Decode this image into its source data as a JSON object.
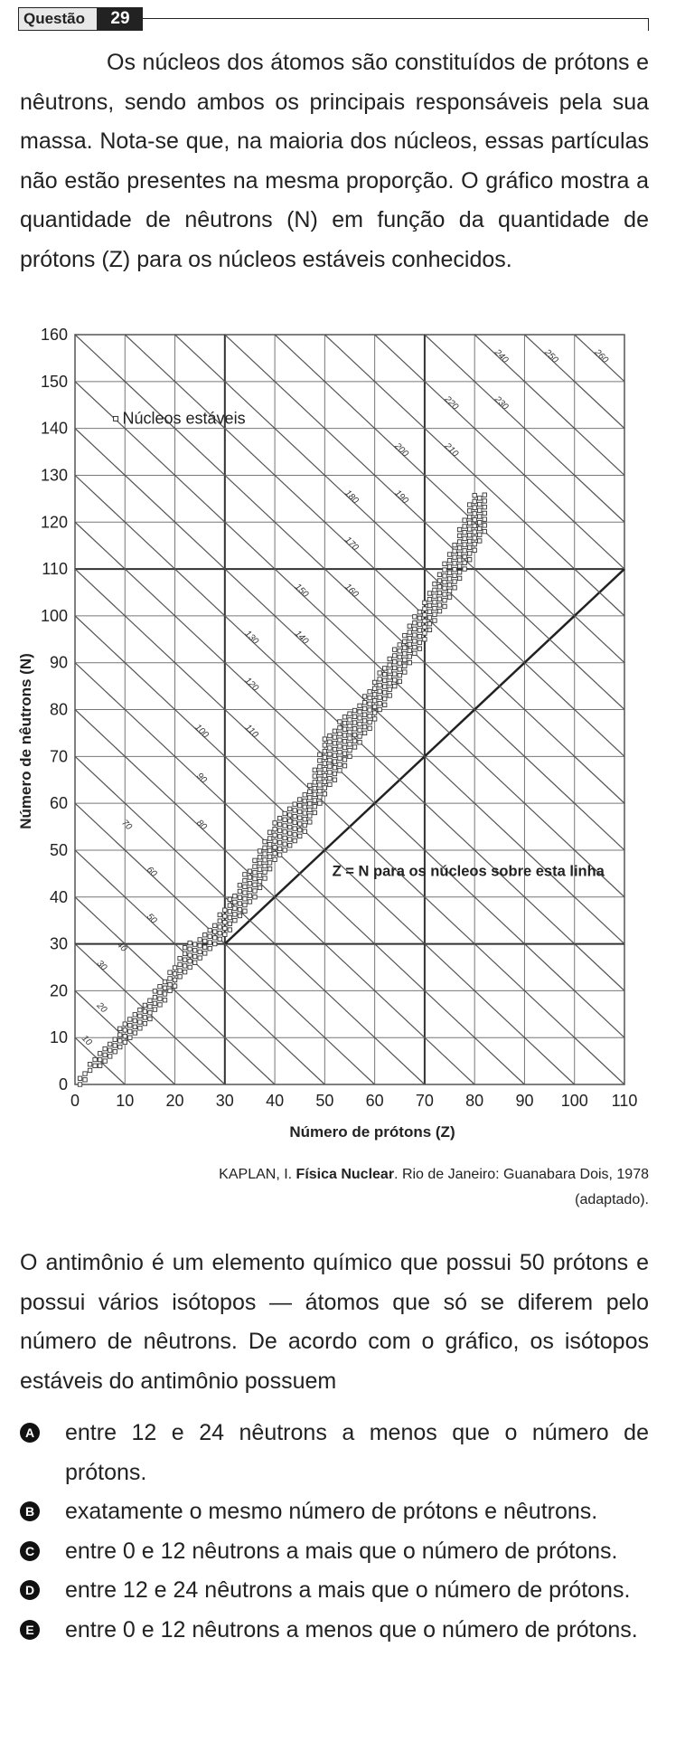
{
  "header": {
    "label": "Questão",
    "number": "29"
  },
  "intro_text": "Os núcleos dos átomos são constituídos de prótons e nêutrons, sendo ambos os principais responsáveis pela sua massa. Nota-se que, na maioria dos núcleos, essas partículas não estão presentes na mesma proporção. O gráfico mostra a quantidade de nêutrons (N) em função da quantidade de prótons (Z) para os núcleos estáveis conhecidos.",
  "chart_data": {
    "type": "scatter",
    "xlabel": "Número de prótons (Z)",
    "ylabel": "Número de nêutrons (N)",
    "xlim": [
      0,
      110
    ],
    "ylim": [
      0,
      160
    ],
    "x_ticks": [
      "0",
      "10",
      "20",
      "30",
      "40",
      "50",
      "60",
      "70",
      "80",
      "90",
      "100",
      "110"
    ],
    "y_ticks": [
      "0",
      "10",
      "20",
      "30",
      "40",
      "50",
      "60",
      "70",
      "80",
      "90",
      "100",
      "110",
      "120",
      "130",
      "140",
      "150",
      "160"
    ],
    "legend": "Núcleos estáveis",
    "zn_line_label": "Z = N para os núcleos sobre esta linha",
    "zn_line": {
      "from": [
        30,
        30
      ],
      "to": [
        110,
        110
      ]
    },
    "horizontal_lines": [
      30,
      110
    ],
    "vertical_lines": [
      30,
      70
    ],
    "mass_number_labels": [
      {
        "text": "10",
        "x": 2,
        "y": 9
      },
      {
        "text": "20",
        "x": 5,
        "y": 16
      },
      {
        "text": "30",
        "x": 5,
        "y": 25
      },
      {
        "text": "40",
        "x": 9,
        "y": 29
      },
      {
        "text": "50",
        "x": 15,
        "y": 35
      },
      {
        "text": "60",
        "x": 15,
        "y": 45
      },
      {
        "text": "70",
        "x": 10,
        "y": 55
      },
      {
        "text": "80",
        "x": 25,
        "y": 55
      },
      {
        "text": "90",
        "x": 25,
        "y": 65
      },
      {
        "text": "100",
        "x": 25,
        "y": 75
      },
      {
        "text": "110",
        "x": 35,
        "y": 75
      },
      {
        "text": "120",
        "x": 35,
        "y": 85
      },
      {
        "text": "130",
        "x": 35,
        "y": 95
      },
      {
        "text": "140",
        "x": 45,
        "y": 95
      },
      {
        "text": "150",
        "x": 45,
        "y": 105
      },
      {
        "text": "160",
        "x": 55,
        "y": 105
      },
      {
        "text": "170",
        "x": 55,
        "y": 115
      },
      {
        "text": "180",
        "x": 55,
        "y": 125
      },
      {
        "text": "190",
        "x": 65,
        "y": 125
      },
      {
        "text": "200",
        "x": 65,
        "y": 135
      },
      {
        "text": "210",
        "x": 75,
        "y": 135
      },
      {
        "text": "220",
        "x": 75,
        "y": 145
      },
      {
        "text": "230",
        "x": 85,
        "y": 145
      },
      {
        "text": "240",
        "x": 85,
        "y": 155
      },
      {
        "text": "250",
        "x": 95,
        "y": 155
      },
      {
        "text": "260",
        "x": 105,
        "y": 155
      }
    ],
    "stable_nuclei_band": [
      [
        1,
        0,
        2
      ],
      [
        2,
        1,
        3
      ],
      [
        3,
        3,
        5
      ],
      [
        5,
        4,
        7
      ],
      [
        8,
        7,
        10
      ],
      [
        10,
        9,
        13
      ],
      [
        14,
        13,
        17
      ],
      [
        18,
        18,
        22
      ],
      [
        22,
        24,
        30
      ],
      [
        26,
        28,
        32
      ],
      [
        30,
        32,
        38
      ],
      [
        36,
        40,
        48
      ],
      [
        40,
        48,
        56
      ],
      [
        46,
        54,
        62
      ],
      [
        50,
        62,
        74
      ],
      [
        55,
        70,
        80
      ],
      [
        60,
        78,
        86
      ],
      [
        66,
        88,
        96
      ],
      [
        70,
        95,
        104
      ],
      [
        76,
        106,
        116
      ],
      [
        80,
        114,
        126
      ],
      [
        83,
        120,
        126
      ]
    ]
  },
  "caption": {
    "author": "KAPLAN, I.",
    "title": "Física Nuclear",
    "rest": ". Rio de Janeiro: Guanabara Dois, 1978 (adaptado)."
  },
  "question_text": "O antimônio é um elemento químico que possui 50 prótons e possui vários isótopos — átomos que só se diferem pelo número de nêutrons. De acordo com o gráfico, os isótopos estáveis do antimônio possuem",
  "options": [
    {
      "letter": "A",
      "text": "entre 12 e 24 nêutrons a menos que o número de prótons."
    },
    {
      "letter": "B",
      "text": "exatamente o mesmo número de prótons e nêutrons."
    },
    {
      "letter": "C",
      "text": "entre 0 e 12 nêutrons a mais que o número de prótons."
    },
    {
      "letter": "D",
      "text": "entre 12 e 24 nêutrons a mais que o número de prótons."
    },
    {
      "letter": "E",
      "text": "entre 0 e 12 nêutrons a menos que o número de prótons."
    }
  ]
}
